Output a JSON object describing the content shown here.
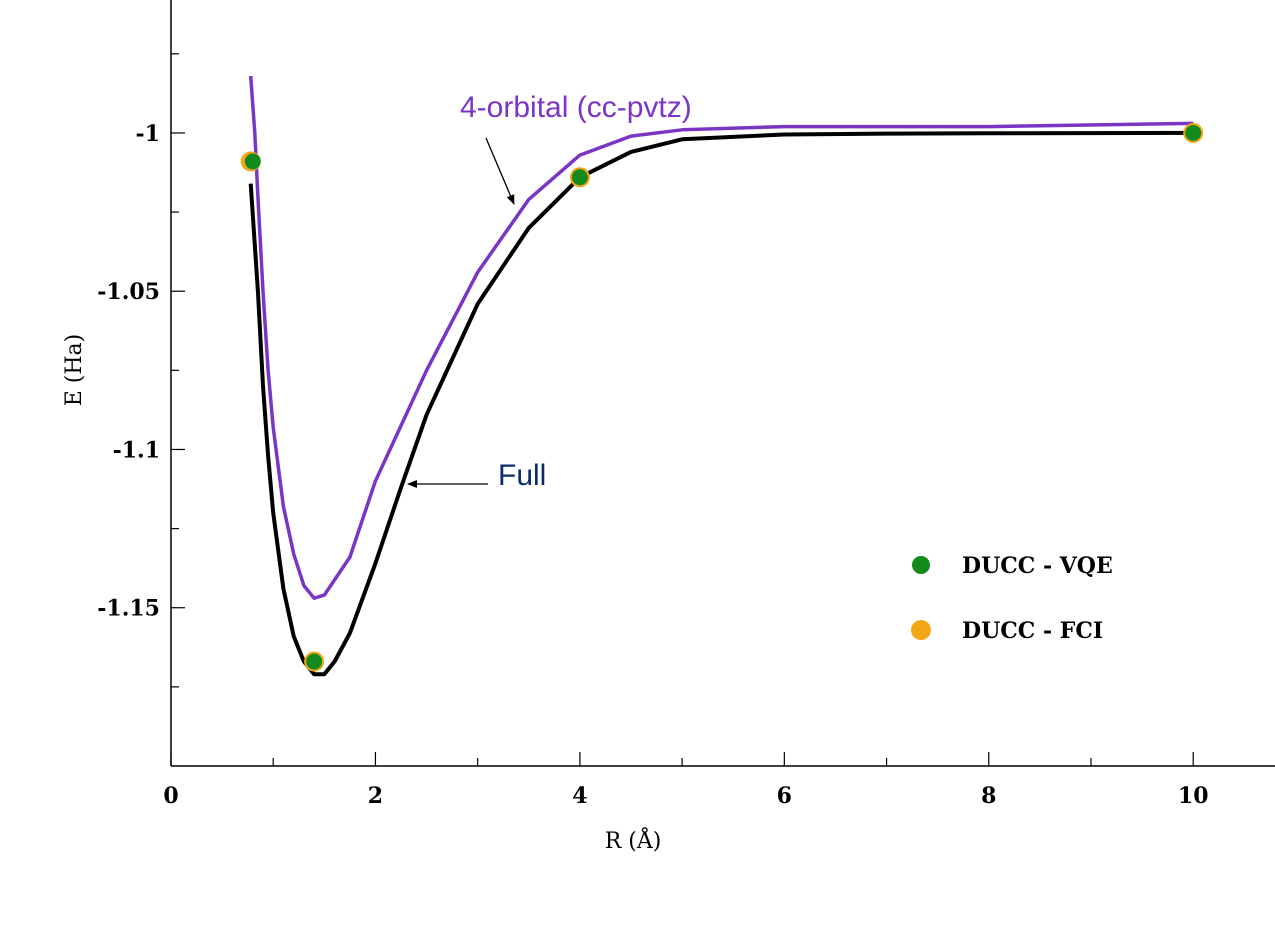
{
  "chart_data": {
    "type": "line",
    "title": "",
    "xlabel": "R (Å)",
    "ylabel": "E (Ha)",
    "xlim": [
      0,
      10.8
    ],
    "ylim": [
      -1.2,
      -0.958
    ],
    "x_ticks": [
      0,
      2,
      4,
      6,
      8,
      10
    ],
    "x_tick_labels": [
      "0",
      "2",
      "4",
      "6",
      "8",
      "10"
    ],
    "x_minor_ticks": [
      1,
      3,
      5,
      7,
      9
    ],
    "y_ticks": [
      -1,
      -1.05,
      -1.1,
      -1.15
    ],
    "y_tick_labels": [
      "-1",
      "-1.05",
      "-1.1",
      "-1.15"
    ],
    "y_minor_ticks": [
      -0.975,
      -1.025,
      -1.075,
      -1.125,
      -1.175
    ],
    "grid": false,
    "legend_position": "lower-right",
    "series": [
      {
        "name": "Full",
        "kind": "line",
        "color": "#000000",
        "x": [
          0.78,
          0.85,
          0.9,
          0.95,
          1.0,
          1.1,
          1.2,
          1.3,
          1.4,
          1.5,
          1.6,
          1.75,
          2.0,
          2.25,
          2.5,
          3.0,
          3.5,
          4.0,
          4.5,
          5.0,
          6.0,
          7.0,
          8.0,
          10.0
        ],
        "y": [
          -1.016,
          -1.05,
          -1.08,
          -1.102,
          -1.12,
          -1.144,
          -1.159,
          -1.167,
          -1.171,
          -1.171,
          -1.167,
          -1.158,
          -1.136,
          -1.112,
          -1.089,
          -1.054,
          -1.03,
          -1.014,
          -1.006,
          -1.002,
          -1.0005,
          -1.0002,
          -1.0001,
          -1.0
        ]
      },
      {
        "name": "4-orbital (cc-pvtz)",
        "kind": "line",
        "color": "#7b35c4",
        "x": [
          0.78,
          0.82,
          0.85,
          0.9,
          0.95,
          1.0,
          1.1,
          1.2,
          1.3,
          1.4,
          1.5,
          1.75,
          2.0,
          2.5,
          3.0,
          3.5,
          4.0,
          4.5,
          5.0,
          6.0,
          8.0,
          10.0
        ],
        "y": [
          -0.982,
          -1.0,
          -1.02,
          -1.05,
          -1.075,
          -1.093,
          -1.118,
          -1.133,
          -1.143,
          -1.147,
          -1.146,
          -1.134,
          -1.11,
          -1.075,
          -1.044,
          -1.021,
          -1.007,
          -1.001,
          -0.999,
          -0.998,
          -0.998,
          -0.997
        ]
      },
      {
        "name": "DUCC - FCI",
        "kind": "scatter",
        "color": "#f5a614",
        "x": [
          0.78,
          1.4,
          4.0,
          10.0
        ],
        "y": [
          -1.009,
          -1.167,
          -1.014,
          -1.0
        ]
      },
      {
        "name": "DUCC - VQE",
        "kind": "scatter",
        "color": "#128a1c",
        "x": [
          0.8,
          1.4,
          4.0,
          10.0
        ],
        "y": [
          -1.009,
          -1.167,
          -1.014,
          -1.0
        ]
      }
    ],
    "legend": [
      {
        "label": "DUCC - VQE",
        "color": "#128a1c"
      },
      {
        "label": "DUCC - FCI",
        "color": "#f5a614"
      }
    ],
    "annotations": [
      {
        "text": "4-orbital (cc-pvtz)",
        "color": "#7b35c4",
        "target_series": "4-orbital (cc-pvtz)"
      },
      {
        "text": "Full",
        "color": "#0d2a6b",
        "target_series": "Full"
      }
    ]
  }
}
